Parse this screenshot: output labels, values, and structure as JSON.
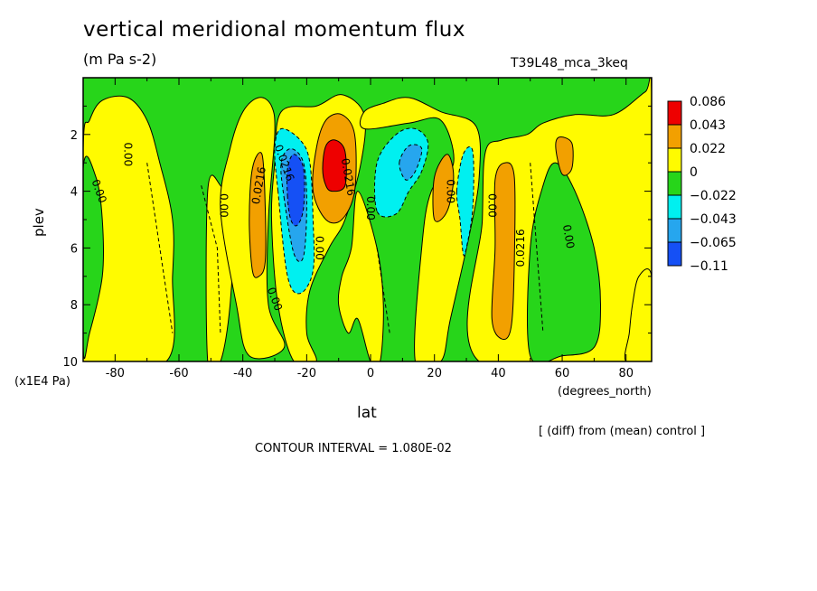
{
  "colors": {
    "red": "#ee0000",
    "orange": "#f2a000",
    "yellow": "#fffb00",
    "green": "#27d51a",
    "cyan": "#00f0f0",
    "lightblue": "#26a6ee",
    "blue": "#1550f5"
  },
  "chart_data": {
    "type": "heatmap",
    "title": "vertical meridional momentum flux",
    "units": "(m Pa s-2)",
    "run_label": "T39L48_mca_3keq",
    "xlabel": "lat",
    "x_unit": "(degrees_north)",
    "ylabel": "plev",
    "y_unit": "(x1E4 Pa)",
    "note": "[ (diff) from (mean) control ]",
    "contour_interval_text": "CONTOUR INTERVAL = 1.080E-02",
    "xlim": [
      -90,
      88
    ],
    "ylim": [
      10,
      0
    ],
    "x_ticks": [
      -80,
      -60,
      -40,
      -20,
      0,
      20,
      40,
      60,
      80
    ],
    "y_ticks": [
      2,
      4,
      6,
      8,
      10
    ],
    "legend": {
      "placement": "right",
      "labels": [
        "0.086",
        "0.043",
        "0.022",
        "0",
        "−0.022",
        "−0.043",
        "−0.065",
        "−0.11"
      ],
      "colors": [
        "#ee0000",
        "#f2a000",
        "#fffb00",
        "#27d51a",
        "#00f0f0",
        "#26a6ee",
        "#1550f5"
      ]
    },
    "contour_labels": [
      {
        "text": "0.00",
        "lon": -76,
        "p": 2.7,
        "angle": 90
      },
      {
        "text": "0.00",
        "lon": -85,
        "p": 4.0,
        "angle": 70
      },
      {
        "text": "0.00",
        "lon": -46,
        "p": 4.5,
        "angle": 90
      },
      {
        "text": "0.0216",
        "lon": -35,
        "p": 3.8,
        "angle": -80
      },
      {
        "text": "0.0216",
        "lon": -27,
        "p": 3.0,
        "angle": 70
      },
      {
        "text": "0.00",
        "lon": -16,
        "p": 6.0,
        "angle": 90
      },
      {
        "text": "0.00",
        "lon": -30,
        "p": 7.8,
        "angle": 70
      },
      {
        "text": "0.0216",
        "lon": -7,
        "p": 3.5,
        "angle": 80
      },
      {
        "text": "0.00",
        "lon": 0,
        "p": 4.6,
        "angle": 90
      },
      {
        "text": "0.00",
        "lon": 25,
        "p": 4.0,
        "angle": 90
      },
      {
        "text": "0.00",
        "lon": 38,
        "p": 4.5,
        "angle": 90
      },
      {
        "text": "0.0216",
        "lon": 47,
        "p": 6.0,
        "angle": -90
      },
      {
        "text": "0.00",
        "lon": 62,
        "p": 5.6,
        "angle": 80
      }
    ],
    "regions": [
      {
        "level": "yellow",
        "pts": [
          [
            -90,
            2.5
          ],
          [
            -88,
            1.5
          ],
          [
            -84,
            0.8
          ],
          [
            -76,
            0.7
          ],
          [
            -70,
            1.5
          ],
          [
            -66,
            3
          ],
          [
            -62,
            5
          ],
          [
            -62,
            7
          ],
          [
            -64,
            10
          ],
          [
            -90,
            10
          ]
        ]
      },
      {
        "level": "green",
        "pts": [
          [
            -90,
            3.2
          ],
          [
            -86,
            3.5
          ],
          [
            -84,
            5
          ],
          [
            -84,
            7
          ],
          [
            -88,
            9
          ],
          [
            -90,
            9.5
          ]
        ]
      },
      {
        "level": "yellow",
        "pts": [
          [
            -51,
            4
          ],
          [
            -47,
            3.8
          ],
          [
            -43,
            5
          ],
          [
            -44,
            8
          ],
          [
            -47,
            10
          ],
          [
            -51,
            10
          ]
        ]
      },
      {
        "level": "yellow",
        "pts": [
          [
            -47,
            4.6
          ],
          [
            -44,
            2.5
          ],
          [
            -40,
            1.2
          ],
          [
            -35,
            0.7
          ],
          [
            -31,
            1
          ],
          [
            -30,
            2
          ],
          [
            -32,
            5
          ],
          [
            -32,
            8
          ],
          [
            -27,
            9.5
          ],
          [
            -38,
            9.8
          ],
          [
            -42,
            8
          ]
        ]
      },
      {
        "level": "orange",
        "pts": [
          [
            -38,
            5
          ],
          [
            -37,
            3.2
          ],
          [
            -34,
            2.7
          ],
          [
            -33,
            4.5
          ],
          [
            -33,
            6.5
          ],
          [
            -35,
            7
          ],
          [
            -37,
            6.8
          ]
        ]
      },
      {
        "level": "yellow",
        "pts": [
          [
            -29,
            8
          ],
          [
            -31,
            5
          ],
          [
            -30,
            3
          ],
          [
            -28,
            1.2
          ],
          [
            -17,
            1
          ],
          [
            -9,
            0.6
          ],
          [
            -2,
            1.3
          ],
          [
            -3,
            3
          ],
          [
            -8,
            5
          ],
          [
            -13,
            6
          ],
          [
            -19,
            7.5
          ],
          [
            -20,
            9
          ],
          [
            -17,
            10
          ],
          [
            -24,
            10
          ]
        ]
      },
      {
        "level": "orange",
        "pts": [
          [
            -18,
            4
          ],
          [
            -17,
            2.5
          ],
          [
            -14,
            1.5
          ],
          [
            -9,
            1.3
          ],
          [
            -5,
            2
          ],
          [
            -5,
            4
          ],
          [
            -9,
            5
          ],
          [
            -14,
            5
          ]
        ]
      },
      {
        "level": "red",
        "pts": [
          [
            -15,
            3.2
          ],
          [
            -14,
            2.4
          ],
          [
            -11,
            2.2
          ],
          [
            -8,
            2.6
          ],
          [
            -8,
            3.8
          ],
          [
            -12,
            4
          ],
          [
            -14,
            3.8
          ]
        ]
      },
      {
        "level": "cyan",
        "pts": [
          [
            -29,
            4
          ],
          [
            -30,
            2.5
          ],
          [
            -28,
            1.8
          ],
          [
            -22,
            2.2
          ],
          [
            -19,
            3
          ],
          [
            -18,
            5
          ],
          [
            -18,
            6.8
          ],
          [
            -22,
            7.6
          ],
          [
            -26,
            7
          ]
        ]
      },
      {
        "level": "lightblue",
        "pts": [
          [
            -27,
            4.3
          ],
          [
            -28,
            3
          ],
          [
            -25,
            2.5
          ],
          [
            -21,
            3
          ],
          [
            -20,
            4.5
          ],
          [
            -21,
            6.3
          ],
          [
            -24,
            6.2
          ]
        ]
      },
      {
        "level": "blue",
        "pts": [
          [
            -26,
            4.2
          ],
          [
            -26,
            3.2
          ],
          [
            -24,
            2.7
          ],
          [
            -21,
            3.2
          ],
          [
            -21,
            4.6
          ],
          [
            -23,
            5.2
          ],
          [
            -25,
            5
          ]
        ]
      },
      {
        "level": "yellow",
        "pts": [
          [
            -4,
            4
          ],
          [
            -6,
            6
          ],
          [
            -9,
            7
          ],
          [
            -10,
            8
          ],
          [
            -7,
            9
          ],
          [
            -4,
            8.5
          ],
          [
            0,
            10
          ],
          [
            3,
            10
          ],
          [
            4,
            8
          ],
          [
            2,
            6
          ]
        ]
      },
      {
        "level": "yellow",
        "pts": [
          [
            -2,
            1.8
          ],
          [
            -2,
            1.2
          ],
          [
            4,
            0.9
          ],
          [
            12,
            0.7
          ],
          [
            22,
            1.2
          ],
          [
            33,
            1.7
          ],
          [
            34,
            3.5
          ],
          [
            31,
            5.5
          ],
          [
            25,
            8.5
          ],
          [
            22,
            10
          ],
          [
            14,
            10
          ],
          [
            16,
            6
          ],
          [
            19,
            4
          ],
          [
            26,
            3
          ],
          [
            22,
            1.5
          ],
          [
            12,
            1.6
          ]
        ]
      },
      {
        "level": "orange",
        "pts": [
          [
            20,
            5
          ],
          [
            20,
            3.5
          ],
          [
            24,
            2.7
          ],
          [
            26,
            3.5
          ],
          [
            24,
            4.7
          ]
        ]
      },
      {
        "level": "cyan",
        "pts": [
          [
            2,
            4.7
          ],
          [
            2,
            3
          ],
          [
            8,
            2
          ],
          [
            14,
            1.8
          ],
          [
            18,
            2.3
          ],
          [
            16,
            3.3
          ],
          [
            12,
            4
          ],
          [
            8,
            4.8
          ]
        ]
      },
      {
        "level": "lightblue",
        "pts": [
          [
            9,
            3
          ],
          [
            12,
            2.4
          ],
          [
            16,
            2.5
          ],
          [
            14,
            3.3
          ],
          [
            11,
            3.6
          ]
        ]
      },
      {
        "level": "cyan",
        "pts": [
          [
            27,
            4
          ],
          [
            29,
            2.7
          ],
          [
            32,
            2.6
          ],
          [
            32,
            4.6
          ],
          [
            30,
            6
          ],
          [
            29,
            6.2
          ],
          [
            28,
            5
          ]
        ]
      },
      {
        "level": "yellow",
        "pts": [
          [
            34,
            10
          ],
          [
            35,
            5
          ],
          [
            36,
            2.6
          ],
          [
            41,
            2.2
          ],
          [
            49,
            2
          ],
          [
            54,
            1.6
          ],
          [
            64,
            1.3
          ],
          [
            76,
            1.3
          ],
          [
            86,
            0.5
          ],
          [
            88,
            0.5
          ],
          [
            88,
            10
          ]
        ]
      },
      {
        "level": "green",
        "pts": [
          [
            50,
            9.8
          ],
          [
            50,
            6
          ],
          [
            54,
            3.8
          ],
          [
            58,
            3
          ],
          [
            64,
            4
          ],
          [
            70,
            6
          ],
          [
            72,
            8
          ],
          [
            70,
            9.5
          ],
          [
            60,
            9.8
          ]
        ]
      },
      {
        "level": "orange",
        "pts": [
          [
            38,
            8.5
          ],
          [
            39,
            6
          ],
          [
            39,
            3.6
          ],
          [
            42,
            3
          ],
          [
            45,
            3.5
          ],
          [
            45,
            6.5
          ],
          [
            44,
            8.8
          ],
          [
            41,
            9.2
          ]
        ]
      },
      {
        "level": "orange",
        "pts": [
          [
            58,
            2.5
          ],
          [
            59,
            2.1
          ],
          [
            63,
            2.3
          ],
          [
            63,
            3.2
          ],
          [
            60,
            3.4
          ]
        ]
      },
      {
        "level": "yellow",
        "pts": [
          [
            80,
            10
          ],
          [
            81,
            9
          ],
          [
            82,
            8
          ],
          [
            84,
            7
          ],
          [
            88,
            7
          ],
          [
            88,
            10
          ]
        ]
      }
    ],
    "green_strip_top": true
  }
}
